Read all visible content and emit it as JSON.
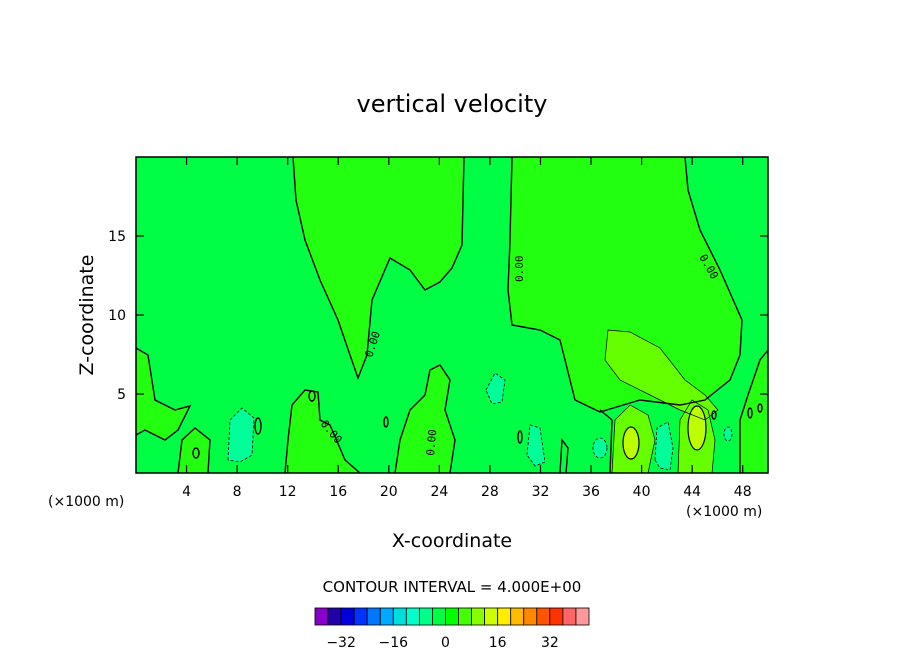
{
  "chart_data": {
    "type": "heatmap",
    "title": "vertical velocity",
    "xlabel": "X-coordinate",
    "ylabel": "Z-coordinate",
    "x_unit": "(×1000 m)",
    "xlim": [
      0,
      50
    ],
    "ylim": [
      0,
      20
    ],
    "x_ticks": [
      4,
      8,
      12,
      16,
      20,
      24,
      28,
      32,
      36,
      40,
      44,
      48
    ],
    "y_ticks": [
      5,
      10,
      15
    ],
    "contour_label": "0.00",
    "contour_interval_text": "CONTOUR INTERVAL = 4.000E+00",
    "colorbar": {
      "ticks": [
        -32,
        -16,
        0,
        16,
        32
      ],
      "tick_labels": [
        "−32",
        "−16",
        "0",
        "16",
        "32"
      ],
      "colors": [
        "#8800cc",
        "#2200aa",
        "#0000dd",
        "#0033ff",
        "#0077ff",
        "#00aaff",
        "#00dddd",
        "#00ffcc",
        "#00ff88",
        "#00ff44",
        "#00ff00",
        "#44ff00",
        "#88ff00",
        "#ccff00",
        "#ffee00",
        "#ffbb00",
        "#ff8800",
        "#ff5500",
        "#ff3300",
        "#ff6666",
        "#ff9999"
      ]
    }
  }
}
